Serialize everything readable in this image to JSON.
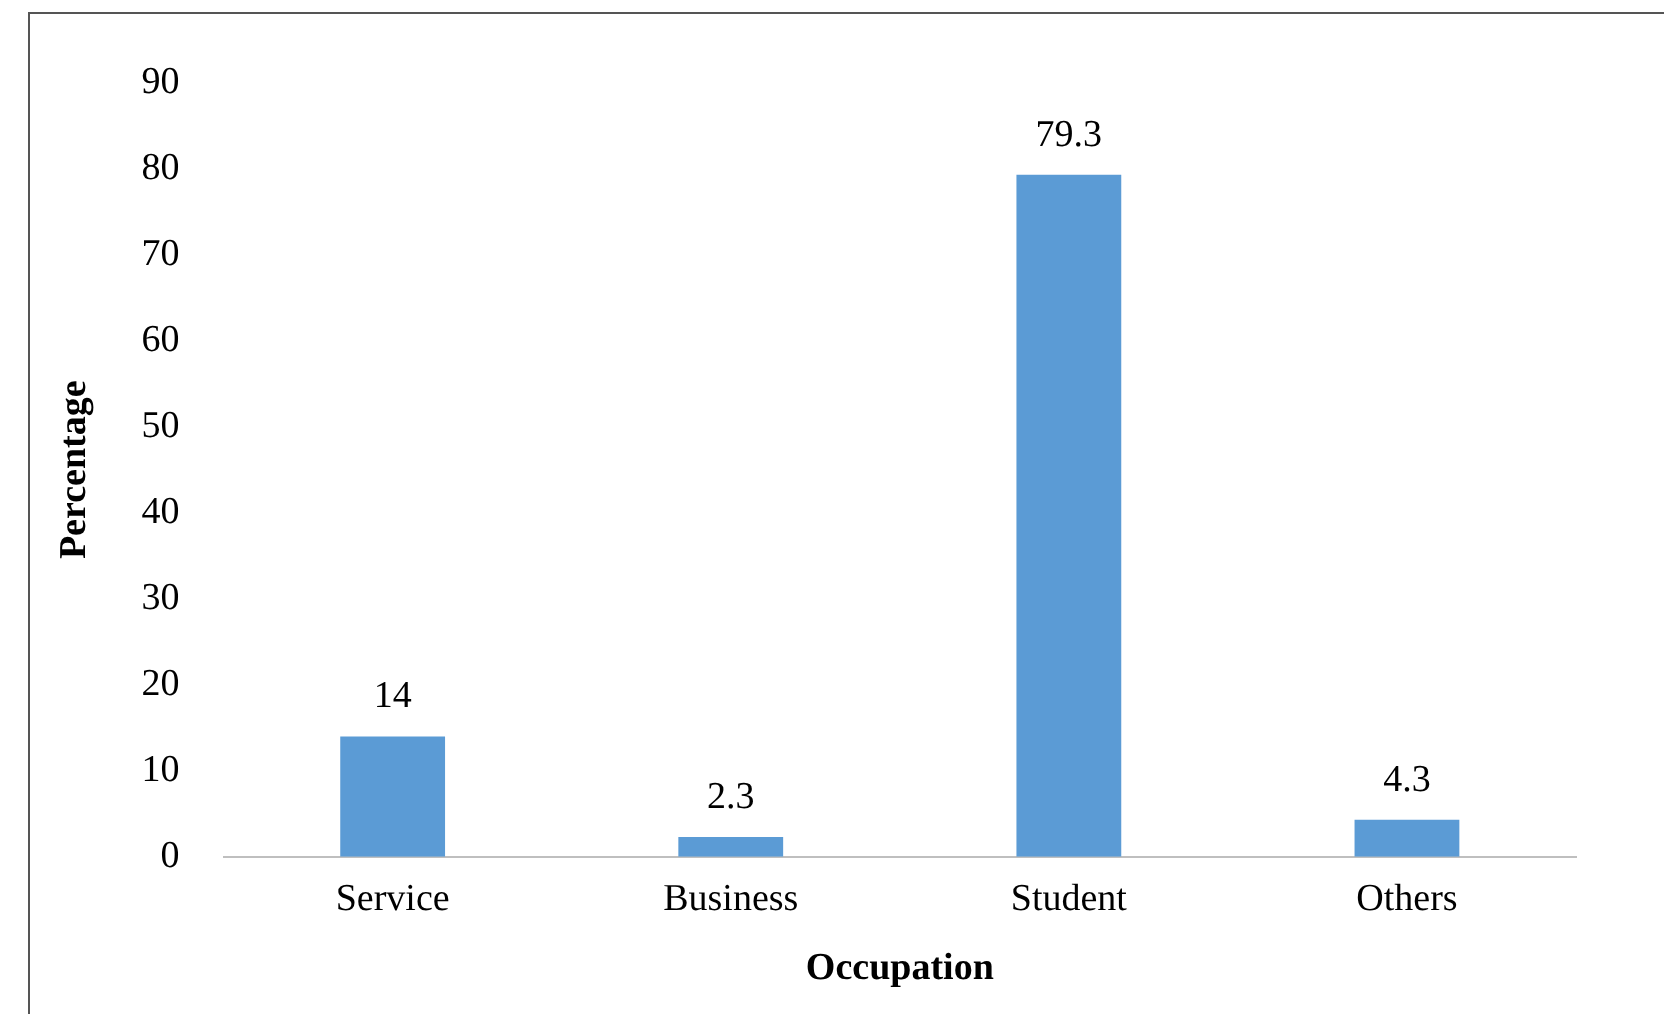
{
  "chart_data": {
    "type": "bar",
    "xlabel": "Occupation",
    "ylabel": "Percentage",
    "categories": [
      "Service",
      "Business",
      "Student",
      "Others"
    ],
    "values": [
      14,
      2.3,
      79.3,
      4.3
    ],
    "color": "#5b9bd5",
    "ylim": [
      0,
      90
    ],
    "yticks": [
      0,
      10,
      20,
      30,
      40,
      50,
      60,
      70,
      80,
      90
    ],
    "grid": false,
    "legend": false,
    "data_labels": true
  }
}
